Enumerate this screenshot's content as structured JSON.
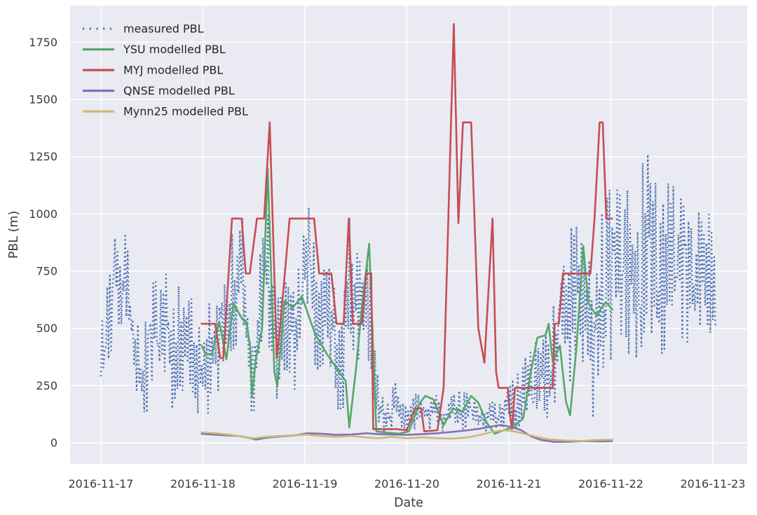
{
  "figure": {
    "background": "#ffffff",
    "plot_background": "#eaeaf2",
    "grid_color": "#ffffff",
    "text_color": "#3b3b3b",
    "series_colors": {
      "measured": "#4c72b0",
      "ysu": "#55a868",
      "myj": "#c44e52",
      "qnse": "#8172b2",
      "mynn25": "#ccb974"
    }
  },
  "chart_data": {
    "type": "line",
    "title": "",
    "xlabel": "Date",
    "ylabel": "PBL (m)",
    "grid": true,
    "legend_position": "upper-left",
    "time_unit": "days since 2016-11-17 00:00",
    "x_axis": {
      "tick_labels": [
        "2016-11-17",
        "2016-11-18",
        "2016-11-19",
        "2016-11-20",
        "2016-11-21",
        "2016-11-22",
        "2016-11-23"
      ],
      "tick_day_offsets": [
        0,
        1,
        2,
        3,
        4,
        5,
        6
      ],
      "xlim_days": [
        -0.302,
        6.337
      ]
    },
    "y_axis": {
      "ticks": [
        0,
        250,
        500,
        750,
        1000,
        1250,
        1500,
        1750
      ],
      "ylim": [
        -92,
        1910
      ]
    },
    "series": [
      {
        "name": "measured PBL",
        "color": "#4c72b0",
        "style": "dotted",
        "representation": "noisy envelope (10-min sonde/lidar data, values oscillate between lo and hi)",
        "envelope": [
          [
            0.0,
            280,
            620
          ],
          [
            0.07,
            350,
            700
          ],
          [
            0.12,
            420,
            820
          ],
          [
            0.145,
            700,
            1075
          ],
          [
            0.18,
            420,
            760
          ],
          [
            0.235,
            600,
            1000
          ],
          [
            0.28,
            420,
            750
          ],
          [
            0.33,
            250,
            620
          ],
          [
            0.4,
            90,
            420
          ],
          [
            0.47,
            130,
            650
          ],
          [
            0.52,
            350,
            720
          ],
          [
            0.58,
            300,
            700
          ],
          [
            0.64,
            300,
            780
          ],
          [
            0.71,
            107,
            600
          ],
          [
            0.76,
            250,
            700
          ],
          [
            0.82,
            200,
            650
          ],
          [
            0.88,
            250,
            700
          ],
          [
            0.93,
            150,
            600
          ],
          [
            0.97,
            80,
            500
          ],
          [
            1.03,
            90,
            550
          ],
          [
            1.08,
            130,
            660
          ],
          [
            1.13,
            250,
            700
          ],
          [
            1.2,
            130,
            700
          ],
          [
            1.28,
            400,
            965
          ],
          [
            1.33,
            350,
            800
          ],
          [
            1.38,
            500,
            1070
          ],
          [
            1.44,
            250,
            700
          ],
          [
            1.48,
            60,
            500
          ],
          [
            1.55,
            300,
            750
          ],
          [
            1.61,
            500,
            1190
          ],
          [
            1.67,
            300,
            800
          ],
          [
            1.73,
            150,
            700
          ],
          [
            1.8,
            300,
            800
          ],
          [
            1.87,
            140,
            650
          ],
          [
            1.93,
            300,
            750
          ],
          [
            1.99,
            500,
            1190
          ],
          [
            2.06,
            350,
            980
          ],
          [
            2.13,
            300,
            750
          ],
          [
            2.2,
            350,
            800
          ],
          [
            2.28,
            300,
            750
          ],
          [
            2.35,
            30,
            700
          ],
          [
            2.44,
            400,
            1040
          ],
          [
            2.52,
            350,
            820
          ],
          [
            2.6,
            400,
            870
          ],
          [
            2.66,
            100,
            700
          ],
          [
            2.72,
            40,
            250
          ],
          [
            2.8,
            40,
            160
          ],
          [
            2.88,
            60,
            280
          ],
          [
            2.96,
            40,
            180
          ],
          [
            3.05,
            50,
            200
          ],
          [
            3.12,
            60,
            235
          ],
          [
            3.2,
            50,
            210
          ],
          [
            3.28,
            60,
            235
          ],
          [
            3.36,
            30,
            150
          ],
          [
            3.44,
            60,
            210
          ],
          [
            3.52,
            55,
            235
          ],
          [
            3.6,
            60,
            220
          ],
          [
            3.68,
            40,
            190
          ],
          [
            3.76,
            50,
            170
          ],
          [
            3.84,
            46,
            190
          ],
          [
            3.92,
            60,
            210
          ],
          [
            4.0,
            80,
            250
          ],
          [
            4.08,
            46,
            303
          ],
          [
            4.16,
            100,
            380
          ],
          [
            4.24,
            98,
            425
          ],
          [
            4.32,
            150,
            500
          ],
          [
            4.4,
            77,
            520
          ],
          [
            4.48,
            200,
            720
          ],
          [
            4.55,
            300,
            800
          ],
          [
            4.62,
            220,
            1041
          ],
          [
            4.7,
            350,
            900
          ],
          [
            4.77,
            300,
            860
          ],
          [
            4.83,
            73,
            700
          ],
          [
            4.9,
            300,
            1000
          ],
          [
            4.97,
            300,
            1140
          ],
          [
            5.04,
            290,
            1100
          ],
          [
            5.12,
            450,
            1200
          ],
          [
            5.2,
            321,
            1250
          ],
          [
            5.28,
            282,
            1200
          ],
          [
            5.36,
            500,
            1320
          ],
          [
            5.44,
            400,
            1330
          ],
          [
            5.52,
            352,
            1300
          ],
          [
            5.6,
            460,
            1150
          ],
          [
            5.68,
            450,
            1100
          ],
          [
            5.76,
            420,
            1000
          ],
          [
            5.84,
            430,
            1040
          ],
          [
            5.92,
            450,
            1000
          ],
          [
            5.99,
            456,
            1086
          ],
          [
            6.03,
            320,
            762
          ]
        ]
      },
      {
        "name": "YSU modelled PBL",
        "color": "#55a868",
        "style": "solid",
        "points": [
          [
            0.98,
            430
          ],
          [
            1.03,
            385
          ],
          [
            1.09,
            390
          ],
          [
            1.16,
            530
          ],
          [
            1.23,
            365
          ],
          [
            1.3,
            610
          ],
          [
            1.38,
            545
          ],
          [
            1.43,
            520
          ],
          [
            1.465,
            410
          ],
          [
            1.48,
            200
          ],
          [
            1.52,
            370
          ],
          [
            1.58,
            495
          ],
          [
            1.635,
            1200
          ],
          [
            1.7,
            310
          ],
          [
            1.73,
            245
          ],
          [
            1.8,
            620
          ],
          [
            1.88,
            590
          ],
          [
            1.97,
            640
          ],
          [
            2.1,
            475
          ],
          [
            2.22,
            385
          ],
          [
            2.35,
            300
          ],
          [
            2.4,
            270
          ],
          [
            2.435,
            67
          ],
          [
            2.5,
            320
          ],
          [
            2.56,
            600
          ],
          [
            2.63,
            870
          ],
          [
            2.7,
            50
          ],
          [
            2.8,
            45
          ],
          [
            2.92,
            40
          ],
          [
            3.02,
            50
          ],
          [
            3.12,
            170
          ],
          [
            3.18,
            205
          ],
          [
            3.26,
            190
          ],
          [
            3.36,
            77
          ],
          [
            3.45,
            150
          ],
          [
            3.54,
            135
          ],
          [
            3.63,
            205
          ],
          [
            3.7,
            175
          ],
          [
            3.78,
            90
          ],
          [
            3.86,
            40
          ],
          [
            3.95,
            55
          ],
          [
            4.05,
            70
          ],
          [
            4.14,
            107
          ],
          [
            4.22,
            320
          ],
          [
            4.28,
            460
          ],
          [
            4.36,
            470
          ],
          [
            4.39,
            520
          ],
          [
            4.43,
            355
          ],
          [
            4.5,
            425
          ],
          [
            4.56,
            180
          ],
          [
            4.6,
            120
          ],
          [
            4.66,
            400
          ],
          [
            4.73,
            860
          ],
          [
            4.78,
            610
          ],
          [
            4.86,
            555
          ],
          [
            4.95,
            615
          ],
          [
            5.02,
            580
          ]
        ]
      },
      {
        "name": "MYJ modelled PBL",
        "color": "#c44e52",
        "style": "solid",
        "points": [
          [
            0.98,
            520
          ],
          [
            1.12,
            520
          ],
          [
            1.17,
            370
          ],
          [
            1.2,
            370
          ],
          [
            1.285,
            980
          ],
          [
            1.38,
            980
          ],
          [
            1.42,
            740
          ],
          [
            1.46,
            740
          ],
          [
            1.53,
            980
          ],
          [
            1.6,
            980
          ],
          [
            1.655,
            1400
          ],
          [
            1.725,
            370
          ],
          [
            1.76,
            520
          ],
          [
            1.85,
            980
          ],
          [
            2.09,
            980
          ],
          [
            2.14,
            740
          ],
          [
            2.26,
            740
          ],
          [
            2.31,
            520
          ],
          [
            2.38,
            520
          ],
          [
            2.43,
            980
          ],
          [
            2.47,
            520
          ],
          [
            2.56,
            520
          ],
          [
            2.6,
            740
          ],
          [
            2.65,
            740
          ],
          [
            2.67,
            60
          ],
          [
            2.9,
            60
          ],
          [
            3.0,
            55
          ],
          [
            3.08,
            150
          ],
          [
            3.14,
            150
          ],
          [
            3.17,
            50
          ],
          [
            3.3,
            55
          ],
          [
            3.36,
            240
          ],
          [
            3.46,
            1830
          ],
          [
            3.505,
            960
          ],
          [
            3.55,
            1400
          ],
          [
            3.63,
            1400
          ],
          [
            3.7,
            500
          ],
          [
            3.76,
            350
          ],
          [
            3.84,
            980
          ],
          [
            3.875,
            310
          ],
          [
            3.9,
            240
          ],
          [
            3.99,
            240
          ],
          [
            4.01,
            120
          ],
          [
            4.03,
            60
          ],
          [
            4.06,
            240
          ],
          [
            4.43,
            240
          ],
          [
            4.45,
            520
          ],
          [
            4.49,
            520
          ],
          [
            4.53,
            740
          ],
          [
            4.8,
            740
          ],
          [
            4.84,
            980
          ],
          [
            4.89,
            1400
          ],
          [
            4.92,
            1400
          ],
          [
            4.955,
            980
          ],
          [
            5.02,
            980
          ]
        ]
      },
      {
        "name": "QNSE modelled PBL",
        "color": "#8172b2",
        "style": "solid",
        "points": [
          [
            0.98,
            40
          ],
          [
            1.1,
            36
          ],
          [
            1.25,
            32
          ],
          [
            1.35,
            30
          ],
          [
            1.45,
            22
          ],
          [
            1.52,
            14
          ],
          [
            1.62,
            22
          ],
          [
            1.75,
            28
          ],
          [
            1.9,
            32
          ],
          [
            2.02,
            42
          ],
          [
            2.15,
            40
          ],
          [
            2.3,
            35
          ],
          [
            2.45,
            36
          ],
          [
            2.6,
            42
          ],
          [
            2.72,
            38
          ],
          [
            2.85,
            36
          ],
          [
            3.0,
            35
          ],
          [
            3.15,
            38
          ],
          [
            3.3,
            42
          ],
          [
            3.45,
            48
          ],
          [
            3.6,
            55
          ],
          [
            3.72,
            62
          ],
          [
            3.84,
            72
          ],
          [
            3.92,
            78
          ],
          [
            4.02,
            70
          ],
          [
            4.12,
            55
          ],
          [
            4.22,
            28
          ],
          [
            4.32,
            12
          ],
          [
            4.45,
            4
          ],
          [
            4.6,
            5
          ],
          [
            4.75,
            8
          ],
          [
            4.9,
            6
          ],
          [
            5.02,
            8
          ]
        ]
      },
      {
        "name": "Mynn25 modelled PBL",
        "color": "#ccb974",
        "style": "solid",
        "points": [
          [
            0.98,
            46
          ],
          [
            1.1,
            43
          ],
          [
            1.25,
            36
          ],
          [
            1.38,
            28
          ],
          [
            1.5,
            20
          ],
          [
            1.62,
            26
          ],
          [
            1.75,
            30
          ],
          [
            1.9,
            33
          ],
          [
            2.02,
            36
          ],
          [
            2.15,
            30
          ],
          [
            2.3,
            26
          ],
          [
            2.45,
            30
          ],
          [
            2.6,
            24
          ],
          [
            2.72,
            20
          ],
          [
            2.85,
            26
          ],
          [
            3.0,
            20
          ],
          [
            3.15,
            24
          ],
          [
            3.3,
            20
          ],
          [
            3.45,
            18
          ],
          [
            3.6,
            24
          ],
          [
            3.72,
            35
          ],
          [
            3.84,
            48
          ],
          [
            3.95,
            55
          ],
          [
            4.05,
            50
          ],
          [
            4.15,
            40
          ],
          [
            4.28,
            25
          ],
          [
            4.4,
            15
          ],
          [
            4.55,
            10
          ],
          [
            4.7,
            8
          ],
          [
            4.85,
            12
          ],
          [
            5.02,
            14
          ]
        ]
      }
    ]
  }
}
